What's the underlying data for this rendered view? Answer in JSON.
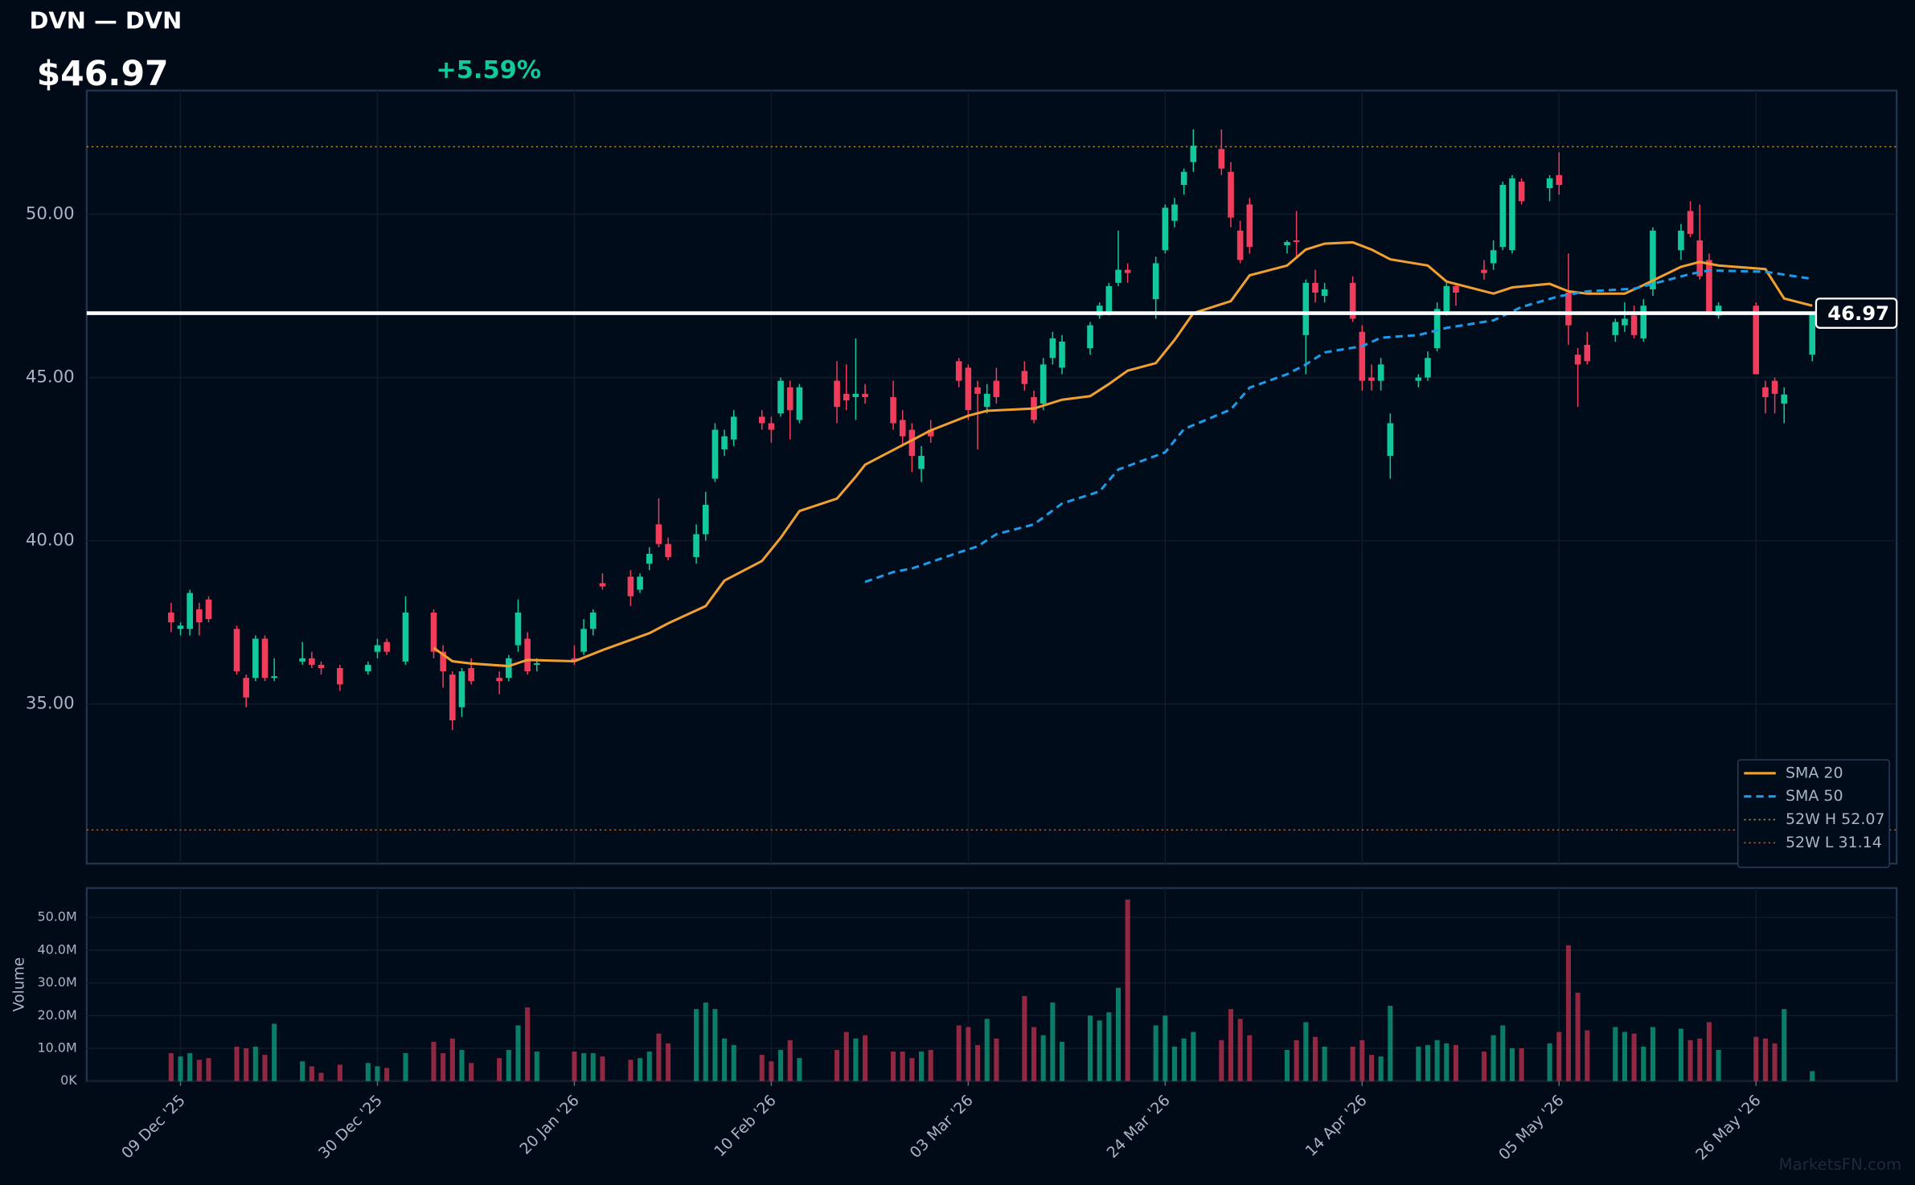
{
  "chart_data": {
    "type": "candlestick",
    "title": "DVN — DVN",
    "price": {
      "value": 46.97,
      "label": "$46.97"
    },
    "change": {
      "value": 5.59,
      "label": "+5.59%"
    },
    "last_price": 46.97,
    "watermark": "MarketsFN.com",
    "volume_label": "Volume",
    "up_color": "#12c99b",
    "down_color": "#f23c5c",
    "grid": true,
    "legend": "lower right",
    "xlim": [
      "2025-11-29",
      "2026-06-10"
    ],
    "xticks": [
      {
        "value": "2025-12-09",
        "label": "09 Dec '25"
      },
      {
        "value": "2025-12-30",
        "label": "30 Dec '25"
      },
      {
        "value": "2026-01-20",
        "label": "20 Jan '26"
      },
      {
        "value": "2026-02-10",
        "label": "10 Feb '26"
      },
      {
        "value": "2026-03-03",
        "label": "03 Mar '26"
      },
      {
        "value": "2026-03-24",
        "label": "24 Mar '26"
      },
      {
        "value": "2026-04-14",
        "label": "14 Apr '26"
      },
      {
        "value": "2026-05-05",
        "label": "05 May '26"
      },
      {
        "value": "2026-05-26",
        "label": "26 May '26"
      }
    ],
    "ylim": [
      30.11,
      53.79
    ],
    "yticks": [
      {
        "value": 35,
        "label": "35.00"
      },
      {
        "value": 40,
        "label": "40.00"
      },
      {
        "value": 45,
        "label": "45.00"
      },
      {
        "value": 50,
        "label": "50.00"
      }
    ],
    "volume_ylim": [
      0,
      59000000
    ],
    "volume_yticks": [
      {
        "value": 0,
        "label": "0K"
      },
      {
        "value": 10000000,
        "label": "10.0M"
      },
      {
        "value": 20000000,
        "label": "20.0M"
      },
      {
        "value": 30000000,
        "label": "30.0M"
      },
      {
        "value": 40000000,
        "label": "40.0M"
      },
      {
        "value": 50000000,
        "label": "50.0M"
      }
    ],
    "x": [
      "2025-12-08",
      "2025-12-09",
      "2025-12-10",
      "2025-12-11",
      "2025-12-12",
      "2025-12-15",
      "2025-12-16",
      "2025-12-17",
      "2025-12-18",
      "2025-12-19",
      "2025-12-22",
      "2025-12-23",
      "2025-12-24",
      "2025-12-26",
      "2025-12-29",
      "2025-12-30",
      "2025-12-31",
      "2026-01-02",
      "2026-01-05",
      "2026-01-06",
      "2026-01-07",
      "2026-01-08",
      "2026-01-09",
      "2026-01-12",
      "2026-01-13",
      "2026-01-14",
      "2026-01-15",
      "2026-01-16",
      "2026-01-20",
      "2026-01-21",
      "2026-01-22",
      "2026-01-23",
      "2026-01-26",
      "2026-01-27",
      "2026-01-28",
      "2026-01-29",
      "2026-01-30",
      "2026-02-02",
      "2026-02-03",
      "2026-02-04",
      "2026-02-05",
      "2026-02-06",
      "2026-02-09",
      "2026-02-10",
      "2026-02-11",
      "2026-02-12",
      "2026-02-13",
      "2026-02-17",
      "2026-02-18",
      "2026-02-19",
      "2026-02-20",
      "2026-02-23",
      "2026-02-24",
      "2026-02-25",
      "2026-02-26",
      "2026-02-27",
      "2026-03-02",
      "2026-03-03",
      "2026-03-04",
      "2026-03-05",
      "2026-03-06",
      "2026-03-09",
      "2026-03-10",
      "2026-03-11",
      "2026-03-12",
      "2026-03-13",
      "2026-03-16",
      "2026-03-17",
      "2026-03-18",
      "2026-03-19",
      "2026-03-20",
      "2026-03-23",
      "2026-03-24",
      "2026-03-25",
      "2026-03-26",
      "2026-03-27",
      "2026-03-30",
      "2026-03-31",
      "2026-04-01",
      "2026-04-02",
      "2026-04-06",
      "2026-04-07",
      "2026-04-08",
      "2026-04-09",
      "2026-04-10",
      "2026-04-13",
      "2026-04-14",
      "2026-04-15",
      "2026-04-16",
      "2026-04-17",
      "2026-04-20",
      "2026-04-21",
      "2026-04-22",
      "2026-04-23",
      "2026-04-24",
      "2026-04-27",
      "2026-04-28",
      "2026-04-29",
      "2026-04-30",
      "2026-05-01",
      "2026-05-04",
      "2026-05-05",
      "2026-05-06",
      "2026-05-07",
      "2026-05-08",
      "2026-05-11",
      "2026-05-12",
      "2026-05-13",
      "2026-05-14",
      "2026-05-15",
      "2026-05-18",
      "2026-05-19",
      "2026-05-20",
      "2026-05-21",
      "2026-05-22",
      "2026-05-26",
      "2026-05-27",
      "2026-05-28",
      "2026-05-29",
      "2026-06-01"
    ],
    "open": [
      37.8,
      37.3,
      37.3,
      37.9,
      38.2,
      37.3,
      35.8,
      35.8,
      37.0,
      35.8,
      36.3,
      36.4,
      36.2,
      36.1,
      36.0,
      36.6,
      36.9,
      36.3,
      37.8,
      36.6,
      35.9,
      34.9,
      36.1,
      35.8,
      35.8,
      36.8,
      37.0,
      36.2,
      36.4,
      36.6,
      37.3,
      38.7,
      38.9,
      38.5,
      39.3,
      40.5,
      39.9,
      39.5,
      40.2,
      41.9,
      42.8,
      43.1,
      43.8,
      43.6,
      43.9,
      44.7,
      43.7,
      44.9,
      44.5,
      44.4,
      44.5,
      44.4,
      43.7,
      43.4,
      42.2,
      43.4,
      45.5,
      45.3,
      44.7,
      44.1,
      44.9,
      45.2,
      44.4,
      44.2,
      45.6,
      45.3,
      45.9,
      46.9,
      47.0,
      47.9,
      48.3,
      47.4,
      48.9,
      49.8,
      50.9,
      51.6,
      52.0,
      51.3,
      49.5,
      50.3,
      49.05,
      49.2,
      46.3,
      47.9,
      47.5,
      47.9,
      46.4,
      45.0,
      44.9,
      42.6,
      44.9,
      45.0,
      45.9,
      47.0,
      47.8,
      48.3,
      48.5,
      49.0,
      48.9,
      51.0,
      50.8,
      51.2,
      47.6,
      45.7,
      46.0,
      46.3,
      46.6,
      46.9,
      46.2,
      47.7,
      48.9,
      50.1,
      49.2,
      48.6,
      46.9,
      47.2,
      44.7,
      44.9,
      44.2,
      45.7
    ],
    "high": [
      38.1,
      37.5,
      38.5,
      38.1,
      38.3,
      37.4,
      35.9,
      37.1,
      37.1,
      36.4,
      36.9,
      36.6,
      36.3,
      36.2,
      36.3,
      37.0,
      37.0,
      38.3,
      37.9,
      36.8,
      36.0,
      36.1,
      36.4,
      36.0,
      36.5,
      38.2,
      37.2,
      36.4,
      36.8,
      37.6,
      37.9,
      39.0,
      39.1,
      39.0,
      39.8,
      41.3,
      40.1,
      40.5,
      41.5,
      43.6,
      43.4,
      44.0,
      44.0,
      43.8,
      45.0,
      44.9,
      44.8,
      45.5,
      45.4,
      46.2,
      44.8,
      44.9,
      44.0,
      43.6,
      42.9,
      43.7,
      45.6,
      45.4,
      44.9,
      44.8,
      45.3,
      45.5,
      44.6,
      45.6,
      46.4,
      46.3,
      46.7,
      47.3,
      47.9,
      49.5,
      48.5,
      48.7,
      50.3,
      50.5,
      51.4,
      52.6,
      52.6,
      51.6,
      49.8,
      50.5,
      49.2,
      50.1,
      48.0,
      48.3,
      47.9,
      48.1,
      46.6,
      45.4,
      45.6,
      43.9,
      45.1,
      45.8,
      47.3,
      47.9,
      47.9,
      48.6,
      49.2,
      51.0,
      51.2,
      51.1,
      51.2,
      51.9,
      48.8,
      45.9,
      46.4,
      46.8,
      47.3,
      47.2,
      47.4,
      49.6,
      49.7,
      50.4,
      50.3,
      48.8,
      47.3,
      47.3,
      44.9,
      45.0,
      44.7,
      47.0
    ],
    "low": [
      37.2,
      37.1,
      37.1,
      37.1,
      37.5,
      35.9,
      34.9,
      35.7,
      35.7,
      35.7,
      36.2,
      36.1,
      35.9,
      35.4,
      35.9,
      36.4,
      36.5,
      36.2,
      36.4,
      35.5,
      34.2,
      34.6,
      35.6,
      35.3,
      35.7,
      36.6,
      35.9,
      36.0,
      36.2,
      36.5,
      37.1,
      38.5,
      38.0,
      38.4,
      39.1,
      39.8,
      39.4,
      39.3,
      40.0,
      41.8,
      42.6,
      42.9,
      43.4,
      43.0,
      43.8,
      43.1,
      43.6,
      43.6,
      44.0,
      43.7,
      44.2,
      43.4,
      42.9,
      42.1,
      41.8,
      43.0,
      44.7,
      43.7,
      42.8,
      43.9,
      44.2,
      44.6,
      43.6,
      44.0,
      45.4,
      45.1,
      45.7,
      46.8,
      46.9,
      47.8,
      47.9,
      46.8,
      48.8,
      49.6,
      50.6,
      51.3,
      51.2,
      49.6,
      48.5,
      48.8,
      48.8,
      48.7,
      45.1,
      47.3,
      47.3,
      46.7,
      44.6,
      44.6,
      44.6,
      41.9,
      44.7,
      44.9,
      45.8,
      46.9,
      47.2,
      48.0,
      48.3,
      48.9,
      48.8,
      50.3,
      50.4,
      50.6,
      46.0,
      44.1,
      45.4,
      46.1,
      46.4,
      46.2,
      46.1,
      47.5,
      48.6,
      49.3,
      48.0,
      47.0,
      46.8,
      45.1,
      43.9,
      43.9,
      43.6,
      45.5
    ],
    "close": [
      37.5,
      37.4,
      38.4,
      37.5,
      37.6,
      36.0,
      35.2,
      37.0,
      35.8,
      35.85,
      36.4,
      36.2,
      36.1,
      35.6,
      36.2,
      36.8,
      36.6,
      37.8,
      36.6,
      36.0,
      34.5,
      36.0,
      35.7,
      35.7,
      36.4,
      37.8,
      36.0,
      36.25,
      36.3,
      37.3,
      37.8,
      38.6,
      38.3,
      38.9,
      39.6,
      39.9,
      39.5,
      40.2,
      41.1,
      43.4,
      43.2,
      43.8,
      43.6,
      43.4,
      44.9,
      44.0,
      44.7,
      44.1,
      44.3,
      44.5,
      44.4,
      43.6,
      43.2,
      42.6,
      42.6,
      43.2,
      44.9,
      44.0,
      44.5,
      44.5,
      44.4,
      44.8,
      43.7,
      45.4,
      46.2,
      46.1,
      46.6,
      47.2,
      47.8,
      48.3,
      48.2,
      48.5,
      50.2,
      50.3,
      51.3,
      52.1,
      51.4,
      49.9,
      48.6,
      49.0,
      49.15,
      49.15,
      47.9,
      47.6,
      47.7,
      46.8,
      44.9,
      44.9,
      45.4,
      43.6,
      45.0,
      45.6,
      47.1,
      47.8,
      47.6,
      48.2,
      48.9,
      50.9,
      51.1,
      50.4,
      51.1,
      50.9,
      46.6,
      45.4,
      45.5,
      46.7,
      46.8,
      46.3,
      47.2,
      49.5,
      49.5,
      49.4,
      48.1,
      47.0,
      47.2,
      45.1,
      44.4,
      44.5,
      44.48,
      46.97
    ],
    "volume": [
      8500000,
      7500000,
      8500000,
      6500000,
      7000000,
      10500000,
      10000000,
      10500000,
      8000000,
      17500000,
      6000000,
      4500000,
      2500000,
      5000000,
      5500000,
      4500000,
      4000000,
      8500000,
      12000000,
      8500000,
      13000000,
      9500000,
      5500000,
      7000000,
      9500000,
      17000000,
      22500000,
      9000000,
      9000000,
      8500000,
      8500000,
      7500000,
      6500000,
      7000000,
      9000000,
      14500000,
      11500000,
      22000000,
      24000000,
      22000000,
      13000000,
      11000000,
      8000000,
      6000000,
      9500000,
      12500000,
      7000000,
      9500000,
      15000000,
      13000000,
      14000000,
      9000000,
      9000000,
      7000000,
      9000000,
      9500000,
      17000000,
      16500000,
      11000000,
      19000000,
      13000000,
      26000000,
      16500000,
      14000000,
      24000000,
      12000000,
      20000000,
      18500000,
      21000000,
      28500000,
      55500000,
      17000000,
      20000000,
      10500000,
      13000000,
      15000000,
      12500000,
      22000000,
      19000000,
      14000000,
      9500000,
      12500000,
      18000000,
      13500000,
      10500000,
      10500000,
      12500000,
      8000000,
      7500000,
      23000000,
      10500000,
      11000000,
      12500000,
      11500000,
      11000000,
      9000000,
      14000000,
      17000000,
      10000000,
      10000000,
      11500000,
      15000000,
      41500000,
      27000000,
      15500000,
      16500000,
      15000000,
      14500000,
      10500000,
      16500000,
      16000000,
      12500000,
      13000000,
      18000000,
      9500000,
      13500000,
      13000000,
      11500000,
      22000000,
      3000000
    ],
    "overlays": [
      {
        "name": "SMA 20",
        "color": "#f0a030",
        "dash": "solid",
        "x": [
          "2026-01-05",
          "2026-01-07",
          "2026-01-09",
          "2026-01-13",
          "2026-01-15",
          "2026-01-20",
          "2026-01-23",
          "2026-01-28",
          "2026-01-30",
          "2026-02-03",
          "2026-02-05",
          "2026-02-09",
          "2026-02-11",
          "2026-02-13",
          "2026-02-17",
          "2026-02-19",
          "2026-02-20",
          "2026-02-25",
          "2026-02-27",
          "2026-03-03",
          "2026-03-05",
          "2026-03-10",
          "2026-03-13",
          "2026-03-16",
          "2026-03-18",
          "2026-03-20",
          "2026-03-23",
          "2026-03-25",
          "2026-03-27",
          "2026-03-31",
          "2026-04-02",
          "2026-04-06",
          "2026-04-08",
          "2026-04-10",
          "2026-04-13",
          "2026-04-15",
          "2026-04-17",
          "2026-04-21",
          "2026-04-23",
          "2026-04-28",
          "2026-04-30",
          "2026-05-04",
          "2026-05-06",
          "2026-05-08",
          "2026-05-12",
          "2026-05-14",
          "2026-05-18",
          "2026-05-20",
          "2026-05-22",
          "2026-05-27",
          "2026-05-29",
          "2026-06-01"
        ],
        "values": [
          36.72,
          36.31,
          36.24,
          36.16,
          36.35,
          36.31,
          36.65,
          37.17,
          37.47,
          38.0,
          38.78,
          39.38,
          40.09,
          40.91,
          41.29,
          41.96,
          42.33,
          43.08,
          43.38,
          43.83,
          43.98,
          44.05,
          44.32,
          44.43,
          44.8,
          45.21,
          45.44,
          46.15,
          46.97,
          47.34,
          48.13,
          48.43,
          48.92,
          49.1,
          49.14,
          48.92,
          48.62,
          48.43,
          47.94,
          47.57,
          47.76,
          47.87,
          47.64,
          47.57,
          47.57,
          47.83,
          48.39,
          48.54,
          48.43,
          48.32,
          47.42,
          47.2
        ]
      },
      {
        "name": "SMA 50",
        "color": "#1e9be8",
        "dash": "dashed",
        "x": [
          "2026-02-20",
          "2026-02-23",
          "2026-02-25",
          "2026-03-02",
          "2026-03-04",
          "2026-03-06",
          "2026-03-10",
          "2026-03-13",
          "2026-03-17",
          "2026-03-19",
          "2026-03-24",
          "2026-03-26",
          "2026-03-31",
          "2026-04-02",
          "2026-04-06",
          "2026-04-08",
          "2026-04-10",
          "2026-04-14",
          "2026-04-16",
          "2026-04-20",
          "2026-04-23",
          "2026-04-28",
          "2026-05-01",
          "2026-05-05",
          "2026-05-08",
          "2026-05-13",
          "2026-05-19",
          "2026-05-21",
          "2026-05-27",
          "2026-06-01"
        ],
        "values": [
          38.74,
          39.04,
          39.15,
          39.64,
          39.83,
          40.2,
          40.5,
          41.14,
          41.51,
          42.18,
          42.71,
          43.42,
          44.02,
          44.69,
          45.1,
          45.4,
          45.77,
          45.96,
          46.22,
          46.3,
          46.52,
          46.75,
          47.16,
          47.49,
          47.64,
          47.72,
          48.17,
          48.28,
          48.24,
          48.02
        ]
      }
    ],
    "reference_lines": [
      {
        "name": "52W H 52.07",
        "value": 52.07,
        "color": "#b8862a",
        "dash": "dotted"
      },
      {
        "name": "52W L 31.14",
        "value": 31.14,
        "color": "#b0643a",
        "dash": "dotted"
      }
    ]
  }
}
